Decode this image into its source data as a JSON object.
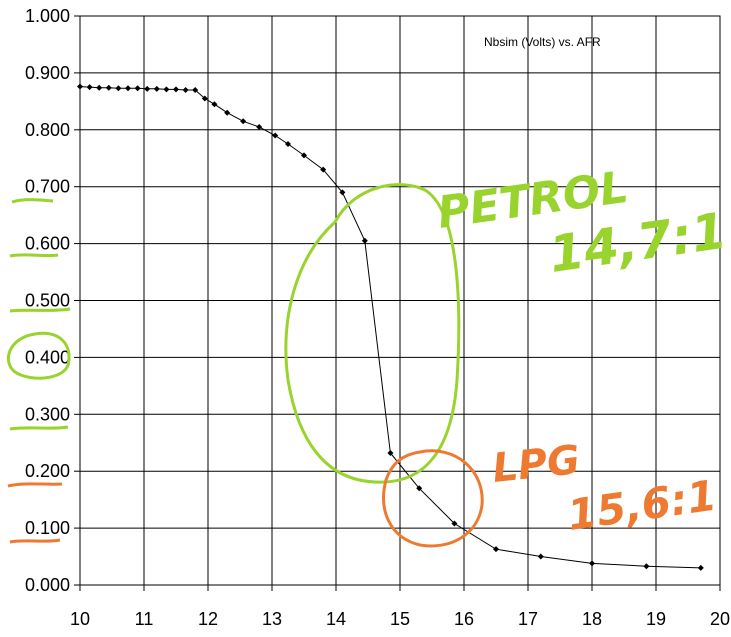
{
  "chart_data": {
    "type": "line",
    "title": "Nbsim (Volts)  vs. AFR",
    "xlabel": "",
    "ylabel": "",
    "xlim": [
      10,
      20
    ],
    "ylim": [
      0,
      1
    ],
    "grid": true,
    "x_ticks": [
      "10",
      "11",
      "12",
      "13",
      "14",
      "15",
      "16",
      "17",
      "18",
      "19",
      "20"
    ],
    "y_ticks": [
      "0.000",
      "0.100",
      "0.200",
      "0.300",
      "0.400",
      "0.500",
      "0.600",
      "0.700",
      "0.800",
      "0.900",
      "1.000"
    ],
    "series": [
      {
        "x": [
          10.0,
          10.15,
          10.3,
          10.45,
          10.6,
          10.75,
          10.9,
          11.05,
          11.2,
          11.35,
          11.5,
          11.65,
          11.8,
          11.95,
          12.1,
          12.3,
          12.55,
          12.8,
          13.05,
          13.25,
          13.5,
          13.8,
          14.1,
          14.45,
          14.85,
          15.3,
          15.85,
          16.5,
          17.2,
          18.0,
          18.85,
          19.7
        ],
        "y": [
          0.876,
          0.875,
          0.874,
          0.874,
          0.873,
          0.873,
          0.873,
          0.872,
          0.872,
          0.871,
          0.871,
          0.87,
          0.87,
          0.855,
          0.845,
          0.83,
          0.815,
          0.805,
          0.79,
          0.775,
          0.755,
          0.73,
          0.69,
          0.605,
          0.232,
          0.17,
          0.108,
          0.063,
          0.05,
          0.038,
          0.033,
          0.03
        ],
        "color": "#000000"
      }
    ],
    "annotations": [
      {
        "text": "PETROL",
        "color": "#99d32e"
      },
      {
        "text": "14,7:1",
        "color": "#99d32e"
      },
      {
        "text": "LPG",
        "color": "#ee7a32"
      },
      {
        "text": "15,6:1",
        "color": "#ee7a32"
      }
    ]
  },
  "colors": {
    "petrol_marker": "#99d32e",
    "lpg_marker": "#ee7a32",
    "grid": "#000000",
    "line": "#000000"
  }
}
